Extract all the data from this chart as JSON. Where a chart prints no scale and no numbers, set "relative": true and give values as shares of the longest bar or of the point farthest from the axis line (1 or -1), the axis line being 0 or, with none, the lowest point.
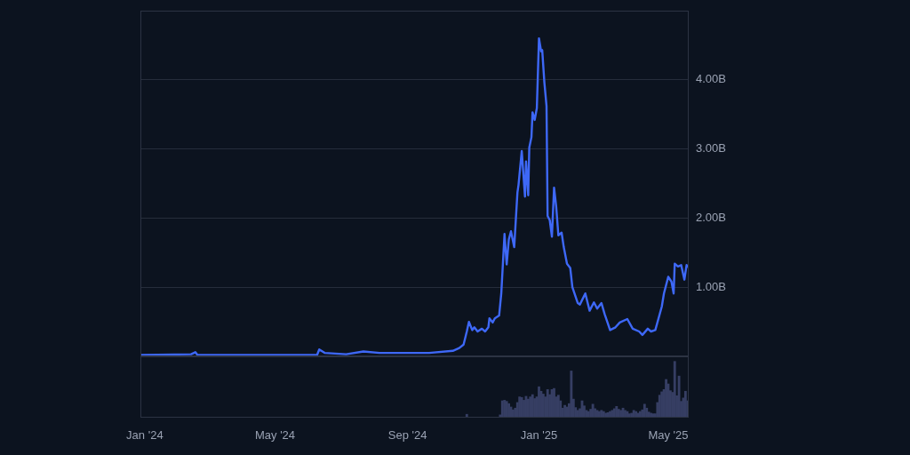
{
  "chart_data": [
    {
      "type": "line",
      "x": [
        "2023-12-28",
        "2024-02-13",
        "2024-02-17",
        "2024-02-19",
        "2024-06-09",
        "2024-06-11",
        "2024-06-16",
        "2024-07-06",
        "2024-07-22",
        "2024-08-06",
        "2024-09-21",
        "2024-10-13",
        "2024-10-19",
        "2024-10-23",
        "2024-10-26",
        "2024-10-28",
        "2024-10-31",
        "2024-11-02",
        "2024-11-05",
        "2024-11-09",
        "2024-11-12",
        "2024-11-15",
        "2024-11-16",
        "2024-11-19",
        "2024-11-21",
        "2024-11-25",
        "2024-11-27",
        "2024-11-30",
        "2024-12-02",
        "2024-12-04",
        "2024-12-06",
        "2024-12-09",
        "2024-12-12",
        "2024-12-13",
        "2024-12-16",
        "2024-12-19",
        "2024-12-20",
        "2024-12-22",
        "2024-12-23",
        "2024-12-25",
        "2024-12-26",
        "2024-12-28",
        "2024-12-30",
        "2025-01-01",
        "2025-01-03",
        "2025-01-04",
        "2025-01-06",
        "2025-01-08",
        "2025-01-09",
        "2025-01-11",
        "2025-01-13",
        "2025-01-15",
        "2025-01-17",
        "2025-01-19",
        "2025-01-22",
        "2025-01-24",
        "2025-01-27",
        "2025-01-30",
        "2025-02-01",
        "2025-02-06",
        "2025-02-08",
        "2025-02-13",
        "2025-02-17",
        "2025-02-21",
        "2025-02-24",
        "2025-02-28",
        "2025-03-03",
        "2025-03-08",
        "2025-03-13",
        "2025-03-17",
        "2025-03-24",
        "2025-03-29",
        "2025-04-04",
        "2025-04-07",
        "2025-04-12",
        "2025-04-15",
        "2025-04-19",
        "2025-04-25",
        "2025-04-27",
        "2025-05-01",
        "2025-05-04",
        "2025-05-06",
        "2025-05-07",
        "2025-05-10",
        "2025-05-13",
        "2025-05-16",
        "2025-05-18",
        "2025-05-19"
      ],
      "series": [
        {
          "color": "#3e68f7",
          "values": [
            0.02,
            0.03,
            0.06,
            0.02,
            0.02,
            0.1,
            0.05,
            0.03,
            0.07,
            0.05,
            0.05,
            0.08,
            0.12,
            0.17,
            0.36,
            0.5,
            0.38,
            0.42,
            0.36,
            0.4,
            0.36,
            0.42,
            0.55,
            0.49,
            0.55,
            0.59,
            0.91,
            1.77,
            1.33,
            1.69,
            1.81,
            1.58,
            2.37,
            2.48,
            2.97,
            2.31,
            2.82,
            2.33,
            3.02,
            3.17,
            3.53,
            3.42,
            3.59,
            4.6,
            4.41,
            4.43,
            3.96,
            3.62,
            2.03,
            1.97,
            1.73,
            2.44,
            2.16,
            1.75,
            1.79,
            1.58,
            1.34,
            1.28,
            1.0,
            0.77,
            0.75,
            0.91,
            0.66,
            0.78,
            0.69,
            0.77,
            0.61,
            0.38,
            0.42,
            0.49,
            0.54,
            0.4,
            0.36,
            0.31,
            0.4,
            0.36,
            0.38,
            0.72,
            0.91,
            1.15,
            1.08,
            0.91,
            1.34,
            1.3,
            1.32,
            1.11,
            1.32,
            1.3
          ]
        }
      ],
      "xlim": [
        "2023-12-28",
        "2025-05-20"
      ],
      "ylim": [
        0,
        5
      ],
      "yticks": [
        {
          "value": 1,
          "label": "1.00B"
        },
        {
          "value": 2,
          "label": "2.00B"
        },
        {
          "value": 3,
          "label": "3.00B"
        },
        {
          "value": 4,
          "label": "4.00B"
        }
      ],
      "grid": "y",
      "tick_labels": "y"
    },
    {
      "type": "bar",
      "relative": true,
      "color": "#363e63",
      "x": [
        "2024-10-26",
        "2024-11-26",
        "2024-11-28",
        "2024-11-30",
        "2024-12-02",
        "2024-12-04",
        "2024-12-06",
        "2024-12-08",
        "2024-12-10",
        "2024-12-12",
        "2024-12-14",
        "2024-12-16",
        "2024-12-18",
        "2024-12-20",
        "2024-12-22",
        "2024-12-24",
        "2024-12-26",
        "2024-12-28",
        "2024-12-30",
        "2025-01-01",
        "2025-01-03",
        "2025-01-05",
        "2025-01-07",
        "2025-01-09",
        "2025-01-11",
        "2025-01-13",
        "2025-01-15",
        "2025-01-17",
        "2025-01-19",
        "2025-01-21",
        "2025-01-23",
        "2025-01-25",
        "2025-01-27",
        "2025-01-29",
        "2025-01-31",
        "2025-02-02",
        "2025-02-04",
        "2025-02-06",
        "2025-02-08",
        "2025-02-10",
        "2025-02-12",
        "2025-02-14",
        "2025-02-16",
        "2025-02-18",
        "2025-02-20",
        "2025-02-22",
        "2025-02-24",
        "2025-02-26",
        "2025-02-28",
        "2025-03-02",
        "2025-03-04",
        "2025-03-06",
        "2025-03-08",
        "2025-03-10",
        "2025-03-12",
        "2025-03-14",
        "2025-03-16",
        "2025-03-18",
        "2025-03-20",
        "2025-03-22",
        "2025-03-24",
        "2025-03-26",
        "2025-03-28",
        "2025-03-30",
        "2025-04-01",
        "2025-04-03",
        "2025-04-05",
        "2025-04-07",
        "2025-04-09",
        "2025-04-11",
        "2025-04-13",
        "2025-04-15",
        "2025-04-17",
        "2025-04-19",
        "2025-04-21",
        "2025-04-23",
        "2025-04-25",
        "2025-04-27",
        "2025-04-29",
        "2025-05-01",
        "2025-05-03",
        "2025-05-05",
        "2025-05-07",
        "2025-05-09",
        "2025-05-11",
        "2025-05-13",
        "2025-05-15",
        "2025-05-17",
        "2025-05-19"
      ],
      "values": [
        0.06,
        0.05,
        0.3,
        0.31,
        0.29,
        0.25,
        0.19,
        0.14,
        0.17,
        0.27,
        0.37,
        0.36,
        0.31,
        0.38,
        0.33,
        0.37,
        0.41,
        0.34,
        0.37,
        0.55,
        0.47,
        0.42,
        0.37,
        0.5,
        0.41,
        0.5,
        0.52,
        0.37,
        0.4,
        0.3,
        0.17,
        0.22,
        0.19,
        0.25,
        0.83,
        0.33,
        0.18,
        0.13,
        0.16,
        0.3,
        0.21,
        0.13,
        0.11,
        0.15,
        0.24,
        0.16,
        0.13,
        0.11,
        0.13,
        0.11,
        0.08,
        0.09,
        0.11,
        0.13,
        0.16,
        0.2,
        0.15,
        0.13,
        0.17,
        0.13,
        0.11,
        0.07,
        0.08,
        0.13,
        0.11,
        0.08,
        0.11,
        0.14,
        0.24,
        0.17,
        0.1,
        0.08,
        0.07,
        0.07,
        0.27,
        0.4,
        0.46,
        0.5,
        0.68,
        0.6,
        0.48,
        0.45,
        1,
        0.39,
        0.74,
        0.29,
        0.35,
        0.47,
        0.3
      ],
      "xlim": [
        "2023-12-28",
        "2025-05-20"
      ],
      "xticks": [
        {
          "value": "2024-01-01",
          "label": "Jan '24"
        },
        {
          "value": "2024-05-01",
          "label": "May '24"
        },
        {
          "value": "2024-09-01",
          "label": "Sep '24"
        },
        {
          "value": "2025-01-01",
          "label": "Jan '25"
        },
        {
          "value": "2025-05-01",
          "label": "May '25"
        }
      ],
      "tick_labels": "x"
    }
  ]
}
